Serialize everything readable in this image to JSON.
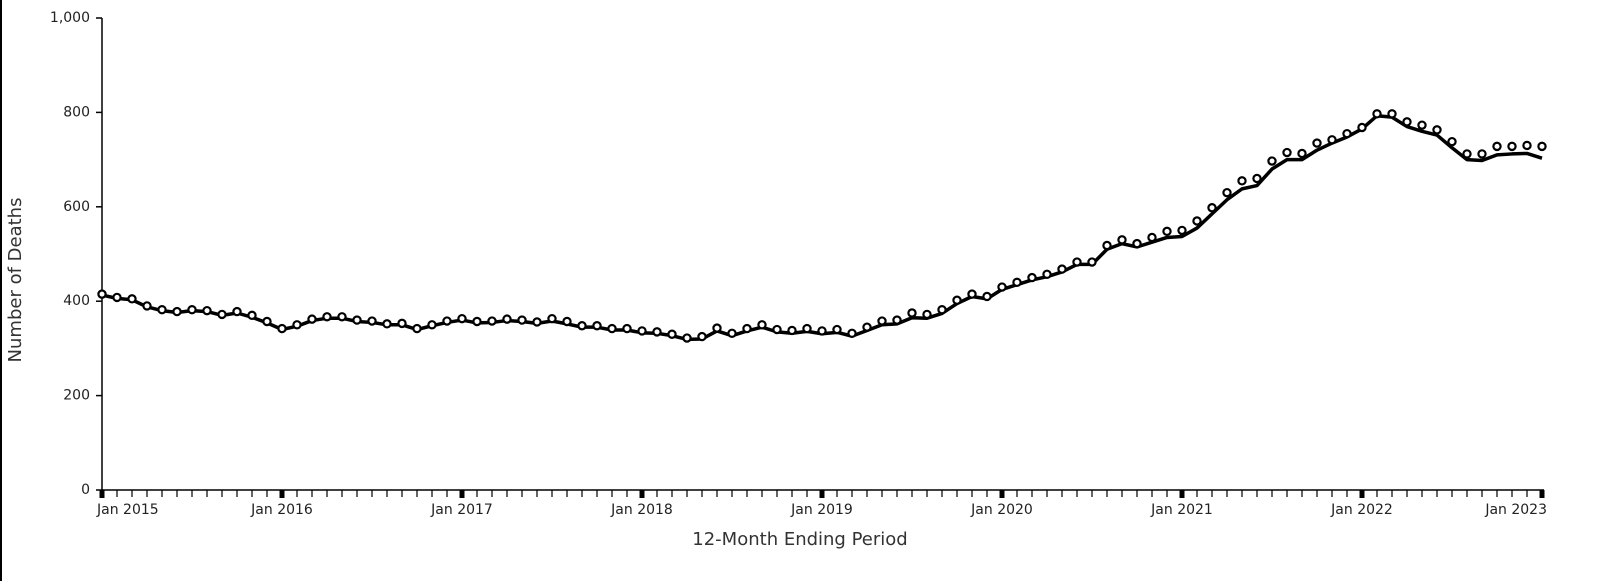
{
  "chart_data": {
    "type": "line",
    "x_label": "12-Month Ending Period",
    "y_label": "Number of Deaths",
    "categories": [
      "Jan 2015",
      null,
      null,
      null,
      null,
      null,
      null,
      null,
      null,
      null,
      null,
      null,
      "Jan 2016",
      null,
      null,
      null,
      null,
      null,
      null,
      null,
      null,
      null,
      null,
      null,
      "Jan 2017",
      null,
      null,
      null,
      null,
      null,
      null,
      null,
      null,
      null,
      null,
      null,
      "Jan 2018",
      null,
      null,
      null,
      null,
      null,
      null,
      null,
      null,
      null,
      null,
      null,
      "Jan 2019",
      null,
      null,
      null,
      null,
      null,
      null,
      null,
      null,
      null,
      null,
      null,
      "Jan 2020",
      null,
      null,
      null,
      null,
      null,
      null,
      null,
      null,
      null,
      null,
      null,
      "Jan 2021",
      null,
      null,
      null,
      null,
      null,
      null,
      null,
      null,
      null,
      null,
      null,
      "Jan 2022",
      null,
      null,
      null,
      null,
      null,
      null,
      null,
      null,
      null,
      null,
      null,
      "Jan 2023"
    ],
    "series": [
      {
        "style": "line",
        "color": "#000000",
        "values": [
          413,
          406,
          403,
          388,
          380,
          376,
          380,
          378,
          370,
          375,
          366,
          354,
          340,
          347,
          359,
          364,
          364,
          357,
          355,
          350,
          350,
          340,
          348,
          355,
          360,
          354,
          355,
          359,
          357,
          353,
          358,
          352,
          345,
          345,
          339,
          339,
          333,
          332,
          327,
          319,
          320,
          337,
          327,
          337,
          345,
          335,
          332,
          336,
          331,
          334,
          326,
          338,
          350,
          352,
          365,
          364,
          374,
          395,
          410,
          405,
          425,
          435,
          445,
          452,
          462,
          478,
          478,
          510,
          522,
          515,
          525,
          535,
          537,
          555,
          585,
          615,
          638,
          645,
          680,
          700,
          700,
          720,
          735,
          748,
          765,
          793,
          790,
          770,
          760,
          752,
          725,
          700,
          698,
          710,
          712,
          713,
          703
        ]
      },
      {
        "style": "circles",
        "color": "#000000",
        "values": [
          415,
          408,
          405,
          390,
          382,
          378,
          382,
          380,
          372,
          378,
          370,
          357,
          342,
          350,
          362,
          367,
          367,
          360,
          358,
          352,
          353,
          342,
          350,
          358,
          363,
          357,
          358,
          362,
          360,
          356,
          363,
          357,
          348,
          348,
          342,
          342,
          337,
          335,
          330,
          322,
          325,
          343,
          332,
          342,
          350,
          340,
          338,
          342,
          337,
          340,
          332,
          345,
          358,
          360,
          375,
          372,
          382,
          402,
          415,
          410,
          430,
          440,
          450,
          457,
          468,
          483,
          483,
          518,
          530,
          522,
          535,
          548,
          550,
          570,
          598,
          630,
          655,
          660,
          697,
          715,
          713,
          735,
          742,
          755,
          768,
          797,
          797,
          780,
          773,
          763,
          738,
          712,
          712,
          728,
          728,
          730,
          728
        ]
      }
    ],
    "ylim": [
      0,
      1000
    ],
    "yticks": [
      0,
      200,
      400,
      600,
      800,
      {
        "value": 1000,
        "label": "1,000"
      }
    ]
  }
}
